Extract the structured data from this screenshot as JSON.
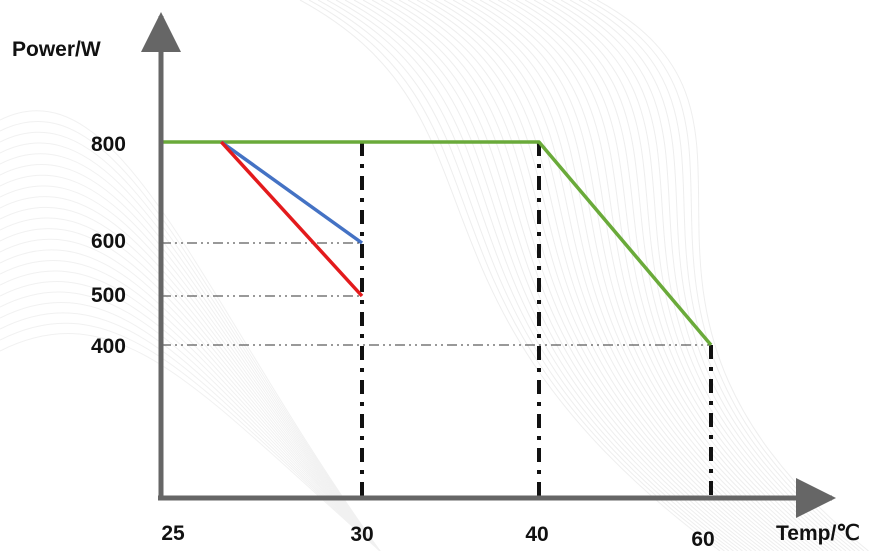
{
  "chart_data": {
    "type": "line",
    "title": "",
    "xlabel": "Temp/℃",
    "ylabel": "Power/W",
    "x_tick_labels": [
      "25",
      "30",
      "40",
      "60"
    ],
    "y_tick_labels": [
      "800",
      "600",
      "500",
      "400"
    ],
    "series": [
      {
        "color": "#6aaa3a",
        "points": [
          [
            25,
            800
          ],
          [
            40,
            800
          ],
          [
            60,
            400
          ]
        ]
      },
      {
        "color": "#4472c4",
        "points": [
          [
            26.5,
            800
          ],
          [
            30,
            600
          ]
        ]
      },
      {
        "color": "#e31a1c",
        "points": [
          [
            26.5,
            800
          ],
          [
            30,
            500
          ]
        ]
      }
    ],
    "reference_lines": {
      "vertical": [
        {
          "x": 30,
          "y_top": 800
        },
        {
          "x": 40,
          "y_top": 800
        },
        {
          "x": 60,
          "y_top": 400
        }
      ],
      "horizontal": [
        {
          "y": 600,
          "x_end": 30
        },
        {
          "y": 500,
          "x_end": 30
        },
        {
          "y": 400,
          "x_end": 60
        }
      ]
    },
    "grid": false,
    "legend": "none"
  }
}
